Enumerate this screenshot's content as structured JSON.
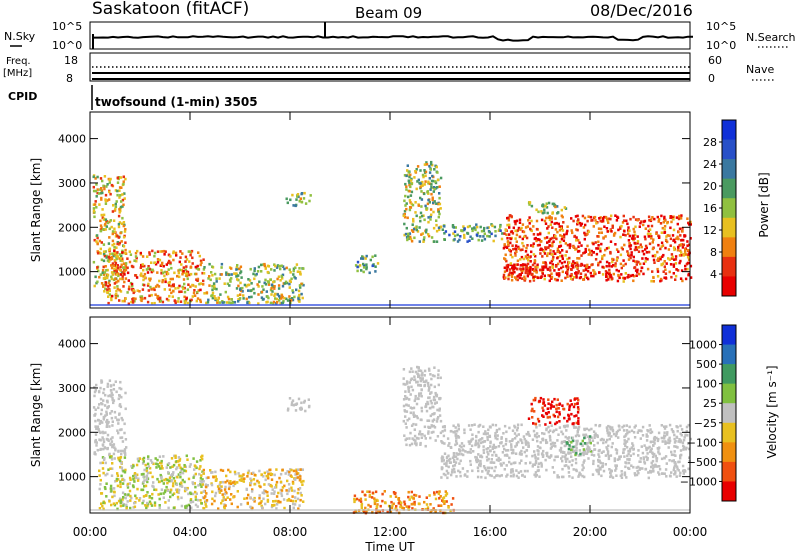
{
  "header": {
    "station": "Saskatoon (fitACF)",
    "beam": "Beam 09",
    "date": "08/Dec/2016"
  },
  "noise_panel": {
    "left_label": "N.Sky",
    "right_label": "N.Search",
    "left_ticks": [
      "10^5",
      "10^0"
    ],
    "right_ticks": [
      "10^5",
      "10^0"
    ]
  },
  "freq_panel": {
    "left_label_line1": "Freq.",
    "left_label_line2": "[MHz]",
    "right_label": "Nave",
    "left_ticks": [
      "18",
      "8"
    ],
    "right_ticks": [
      "60",
      "0"
    ]
  },
  "cpid": {
    "label": "CPID",
    "program": "twofsound (1-min) 3505"
  },
  "colors": {
    "power_scale": [
      "#1030d8",
      "#2850c8",
      "#3a78a0",
      "#4a9a60",
      "#90c040",
      "#e8c020",
      "#f08010",
      "#e83010",
      "#e80000"
    ],
    "velocity_scale": [
      "#1030d8",
      "#2870b8",
      "#409a60",
      "#80c040",
      "#c0c0c0",
      "#e8c020",
      "#f09010",
      "#f05010",
      "#e80000"
    ],
    "ground_scatter": "#c0c0c0"
  },
  "chart_data": [
    {
      "type": "heatmap",
      "name": "power",
      "ylabel": "Slant Range [km]",
      "xlabel": "",
      "y_ticks": [
        "1000",
        "2000",
        "3000",
        "4000"
      ],
      "y_values": [
        1000,
        2000,
        3000,
        4000
      ],
      "ylim": [
        180,
        4600
      ],
      "x_tick_labels": [
        "00:00",
        "04:00",
        "08:00",
        "12:00",
        "16:00",
        "20:00",
        "00:00"
      ],
      "x_hours": [
        0,
        4,
        8,
        12,
        16,
        20,
        24
      ],
      "xlim": [
        0,
        24
      ],
      "colorbar_label": "Power [dB]",
      "colorbar_ticks": [
        "28",
        "24",
        "20",
        "16",
        "12",
        "8",
        "4"
      ],
      "colorbar_values": [
        28,
        24,
        20,
        16,
        12,
        8,
        4
      ],
      "scatter_regions": [
        {
          "t": [
            0.1,
            1.4
          ],
          "r": [
            600,
            3200
          ],
          "level": 7
        },
        {
          "t": [
            0.5,
            4.5
          ],
          "r": [
            300,
            1500
          ],
          "level": 9
        },
        {
          "t": [
            4.5,
            8.5
          ],
          "r": [
            300,
            1200
          ],
          "level": 5
        },
        {
          "t": [
            7.8,
            8.8
          ],
          "r": [
            2500,
            2800
          ],
          "level": 5
        },
        {
          "t": [
            10.5,
            11.5
          ],
          "r": [
            1000,
            1400
          ],
          "level": 4
        },
        {
          "t": [
            12.5,
            14.0
          ],
          "r": [
            1700,
            3500
          ],
          "level": 5
        },
        {
          "t": [
            14.0,
            16.5
          ],
          "r": [
            1700,
            2100
          ],
          "level": 4
        },
        {
          "t": [
            16.5,
            24.0
          ],
          "r": [
            800,
            2300
          ],
          "level": 10
        },
        {
          "t": [
            16.5,
            21.0
          ],
          "r": [
            900,
            1200
          ],
          "level": 11
        },
        {
          "t": [
            17.5,
            19.0
          ],
          "r": [
            2300,
            2600
          ],
          "level": 6
        }
      ]
    },
    {
      "type": "heatmap",
      "name": "velocity",
      "ylabel": "Slant Range [km]",
      "xlabel": "Time UT",
      "y_ticks": [
        "1000",
        "2000",
        "3000",
        "4000"
      ],
      "y_values": [
        1000,
        2000,
        3000,
        4000
      ],
      "ylim": [
        180,
        4600
      ],
      "x_tick_labels": [
        "00:00",
        "04:00",
        "08:00",
        "12:00",
        "16:00",
        "20:00",
        "00:00"
      ],
      "x_hours": [
        0,
        4,
        8,
        12,
        16,
        20,
        24
      ],
      "xlim": [
        0,
        24
      ],
      "colorbar_label": "Velocity [m s⁻¹]",
      "colorbar_ticks": [
        "1000",
        "500",
        "100",
        "25",
        "−25",
        "−100",
        "−500",
        "−1000"
      ],
      "colorbar_values": [
        1000,
        500,
        100,
        25,
        -25,
        -100,
        -500,
        -1000
      ],
      "scatter_regions": [
        {
          "t": [
            0.1,
            1.4
          ],
          "r": [
            1500,
            3200
          ],
          "level": 0
        },
        {
          "t": [
            0.3,
            4.5
          ],
          "r": [
            300,
            1500
          ],
          "level": 2
        },
        {
          "t": [
            4.5,
            8.5
          ],
          "r": [
            300,
            1200
          ],
          "level": 3
        },
        {
          "t": [
            7.8,
            8.8
          ],
          "r": [
            2500,
            2800
          ],
          "level": 0
        },
        {
          "t": [
            10.5,
            14.5
          ],
          "r": [
            200,
            700
          ],
          "level": 4
        },
        {
          "t": [
            12.5,
            14.0
          ],
          "r": [
            1700,
            3500
          ],
          "level": 0
        },
        {
          "t": [
            14.0,
            24.0
          ],
          "r": [
            1000,
            2200
          ],
          "level": 0
        },
        {
          "t": [
            17.5,
            19.5
          ],
          "r": [
            2200,
            2800
          ],
          "level": 6
        },
        {
          "t": [
            19.0,
            20.0
          ],
          "r": [
            1500,
            2000
          ],
          "level": 1
        }
      ]
    }
  ]
}
